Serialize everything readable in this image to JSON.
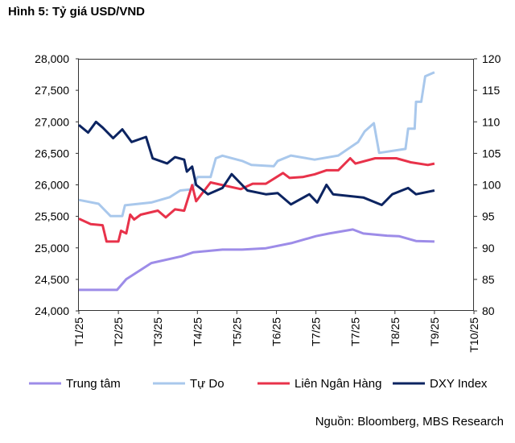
{
  "chart_data": {
    "type": "line",
    "title": "Hình 5: Tỷ giá USD/VND",
    "source": "Nguồn: Bloomberg, MBS Research",
    "x_tick_labels": [
      "T1/25",
      "T2/25",
      "T3/25",
      "T4/25",
      "T5/25",
      "T6/25",
      "T7/25",
      "T7/25",
      "T8/25",
      "T9/25",
      "T10/25"
    ],
    "y_left": {
      "min": 24000,
      "max": 28000,
      "step": 500,
      "tick_labels": [
        "24,000",
        "24,500",
        "25,000",
        "25,500",
        "26,000",
        "26,500",
        "27,000",
        "27,500",
        "28,000"
      ]
    },
    "y_right": {
      "min": 80,
      "max": 120,
      "step": 5,
      "tick_labels": [
        "80",
        "85",
        "90",
        "95",
        "100",
        "105",
        "110",
        "115",
        "120"
      ]
    },
    "grid": false,
    "legend_position": "bottom",
    "series": [
      {
        "name": "Trung tâm",
        "axis": "left",
        "color": "#9d8ce8",
        "points": [
          [
            "2025-01-01",
            24333
          ],
          [
            "2025-01-30",
            24333
          ],
          [
            "2025-02-07",
            24503
          ],
          [
            "2025-02-26",
            24759
          ],
          [
            "2025-03-19",
            24866
          ],
          [
            "2025-03-28",
            24930
          ],
          [
            "2025-04-20",
            24972
          ],
          [
            "2025-05-05",
            24972
          ],
          [
            "2025-05-23",
            24994
          ],
          [
            "2025-06-13",
            25079
          ],
          [
            "2025-07-01",
            25186
          ],
          [
            "2025-07-11",
            25228
          ],
          [
            "2025-07-29",
            25292
          ],
          [
            "2025-08-07",
            25228
          ],
          [
            "2025-08-25",
            25194
          ],
          [
            "2025-09-04",
            25186
          ],
          [
            "2025-09-17",
            25109
          ],
          [
            "2025-10-01",
            25100
          ]
        ]
      },
      {
        "name": "Tự Do",
        "axis": "left",
        "color": "#a9c8ec",
        "points": [
          [
            "2025-01-01",
            25761
          ],
          [
            "2025-01-16",
            25700
          ],
          [
            "2025-01-25",
            25505
          ],
          [
            "2025-02-04",
            25505
          ],
          [
            "2025-02-06",
            25676
          ],
          [
            "2025-02-26",
            25720
          ],
          [
            "2025-03-10",
            25804
          ],
          [
            "2025-03-18",
            25910
          ],
          [
            "2025-03-27",
            25930
          ],
          [
            "2025-03-31",
            26124
          ],
          [
            "2025-04-11",
            26124
          ],
          [
            "2025-04-15",
            26422
          ],
          [
            "2025-04-20",
            26463
          ],
          [
            "2025-05-05",
            26380
          ],
          [
            "2025-05-12",
            26317
          ],
          [
            "2025-05-29",
            26295
          ],
          [
            "2025-06-02",
            26380
          ],
          [
            "2025-06-12",
            26465
          ],
          [
            "2025-06-30",
            26400
          ],
          [
            "2025-07-18",
            26465
          ],
          [
            "2025-08-03",
            26678
          ],
          [
            "2025-08-08",
            26849
          ],
          [
            "2025-08-15",
            26977
          ],
          [
            "2025-08-19",
            26507
          ],
          [
            "2025-09-09",
            26570
          ],
          [
            "2025-09-11",
            26891
          ],
          [
            "2025-09-16",
            26891
          ],
          [
            "2025-09-17",
            27317
          ],
          [
            "2025-09-21",
            27317
          ],
          [
            "2025-09-24",
            27722
          ],
          [
            "2025-10-01",
            27787
          ]
        ]
      },
      {
        "name": "Liên Ngân Hàng",
        "axis": "left",
        "color": "#e8324a",
        "points": [
          [
            "2025-01-01",
            25463
          ],
          [
            "2025-01-10",
            25377
          ],
          [
            "2025-01-19",
            25360
          ],
          [
            "2025-01-22",
            25100
          ],
          [
            "2025-02-01",
            25100
          ],
          [
            "2025-02-03",
            25271
          ],
          [
            "2025-02-07",
            25230
          ],
          [
            "2025-02-10",
            25527
          ],
          [
            "2025-02-13",
            25450
          ],
          [
            "2025-02-18",
            25527
          ],
          [
            "2025-03-01",
            25591
          ],
          [
            "2025-03-07",
            25484
          ],
          [
            "2025-03-14",
            25612
          ],
          [
            "2025-03-21",
            25590
          ],
          [
            "2025-03-27",
            25996
          ],
          [
            "2025-03-30",
            25740
          ],
          [
            "2025-04-11",
            26038
          ],
          [
            "2025-05-04",
            25932
          ],
          [
            "2025-05-13",
            26018
          ],
          [
            "2025-05-23",
            26018
          ],
          [
            "2025-06-06",
            26188
          ],
          [
            "2025-06-11",
            26110
          ],
          [
            "2025-06-21",
            26124
          ],
          [
            "2025-06-30",
            26167
          ],
          [
            "2025-07-09",
            26231
          ],
          [
            "2025-07-18",
            26231
          ],
          [
            "2025-07-27",
            26422
          ],
          [
            "2025-08-01",
            26337
          ],
          [
            "2025-08-16",
            26422
          ],
          [
            "2025-09-02",
            26422
          ],
          [
            "2025-09-13",
            26358
          ],
          [
            "2025-09-26",
            26316
          ],
          [
            "2025-10-01",
            26337
          ]
        ]
      },
      {
        "name": "DXY Index",
        "axis": "right",
        "color": "#0c2461",
        "points": [
          [
            "2025-01-01",
            109.5
          ],
          [
            "2025-01-08",
            108.3
          ],
          [
            "2025-01-14",
            110.0
          ],
          [
            "2025-01-19",
            109.1
          ],
          [
            "2025-01-27",
            107.4
          ],
          [
            "2025-02-04",
            108.8
          ],
          [
            "2025-02-11",
            106.8
          ],
          [
            "2025-02-22",
            107.6
          ],
          [
            "2025-02-27",
            104.2
          ],
          [
            "2025-03-08",
            103.4
          ],
          [
            "2025-03-14",
            104.4
          ],
          [
            "2025-03-21",
            104.0
          ],
          [
            "2025-03-23",
            102.1
          ],
          [
            "2025-03-27",
            102.9
          ],
          [
            "2025-03-30",
            100.0
          ],
          [
            "2025-04-09",
            98.5
          ],
          [
            "2025-04-20",
            99.5
          ],
          [
            "2025-04-27",
            101.7
          ],
          [
            "2025-05-09",
            99.1
          ],
          [
            "2025-05-23",
            98.5
          ],
          [
            "2025-06-02",
            98.7
          ],
          [
            "2025-06-12",
            96.9
          ],
          [
            "2025-06-26",
            98.5
          ],
          [
            "2025-07-02",
            97.2
          ],
          [
            "2025-07-09",
            100.0
          ],
          [
            "2025-07-14",
            98.5
          ],
          [
            "2025-08-07",
            98.0
          ],
          [
            "2025-08-21",
            96.8
          ],
          [
            "2025-08-29",
            98.5
          ],
          [
            "2025-09-11",
            99.5
          ],
          [
            "2025-09-17",
            98.5
          ],
          [
            "2025-10-01",
            99.1
          ]
        ]
      }
    ]
  }
}
